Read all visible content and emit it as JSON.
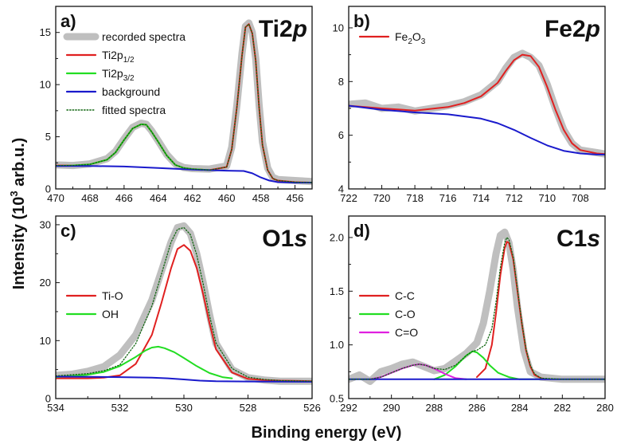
{
  "figure": {
    "xlabel": "Binding energy (eV)",
    "ylabel": "Intensity (10",
    "ylabel_sup": "3",
    "ylabel_unit": " arb.u.)"
  },
  "chart_data": [
    {
      "type": "line",
      "panel": "a)",
      "element": {
        "base": "Ti2",
        "italic": "p"
      },
      "xlim": [
        470,
        455
      ],
      "ylim": [
        0,
        17.5
      ],
      "xticks": [
        470,
        468,
        466,
        464,
        462,
        460,
        458,
        456
      ],
      "yticks": [
        0,
        5,
        10,
        15
      ],
      "legend_position": "top-left",
      "series": [
        {
          "name": "recorded spectra",
          "color": "#bfbfbf",
          "style": "thick",
          "x": [
            470,
            469,
            468,
            467,
            466.5,
            466,
            465.5,
            465,
            464.7,
            464.4,
            464,
            463.5,
            463,
            462.5,
            462,
            461,
            460,
            459.7,
            459.4,
            459.1,
            458.9,
            458.7,
            458.5,
            458.3,
            458.1,
            457.9,
            457.6,
            457.3,
            457,
            456,
            455
          ],
          "y": [
            2.3,
            2.25,
            2.4,
            2.9,
            3.6,
            4.8,
            5.9,
            6.3,
            6.2,
            5.6,
            4.6,
            3.3,
            2.4,
            2.05,
            1.95,
            1.9,
            2.2,
            4.0,
            8.0,
            13.0,
            15.6,
            15.9,
            15.0,
            12.5,
            8.0,
            4.5,
            2.0,
            1.1,
            0.9,
            0.8,
            0.7
          ]
        },
        {
          "name": "Ti2p",
          "name_sub": "1/2",
          "color": "#e02020",
          "style": "solid",
          "x": [
            470,
            469,
            468,
            467,
            466.5,
            466,
            465.5,
            465,
            464.7,
            464.4,
            464,
            463.5,
            463,
            462.5,
            462,
            461,
            460,
            459.7,
            459.4,
            459.1,
            458.9,
            458.7,
            458.5,
            458.3,
            458.1,
            457.9,
            457.6,
            457.3,
            457,
            456,
            455
          ],
          "y": [
            2.25,
            2.25,
            2.35,
            2.8,
            3.5,
            4.7,
            5.8,
            6.2,
            6.15,
            5.5,
            4.5,
            3.2,
            2.3,
            2.0,
            1.9,
            1.8,
            2.1,
            3.8,
            7.8,
            12.8,
            15.5,
            15.8,
            14.9,
            12.3,
            7.8,
            4.2,
            1.8,
            1.0,
            0.8,
            0.65,
            0.6
          ]
        },
        {
          "name": "Ti2p",
          "name_sub": "3/2",
          "color": "#22dd22",
          "style": "solid",
          "x": [
            470,
            469,
            468,
            467,
            466.5,
            466,
            465.5,
            465,
            464.7,
            464.4,
            464,
            463.5,
            463,
            462.5,
            462,
            461
          ],
          "y": [
            2.2,
            2.25,
            2.35,
            2.8,
            3.5,
            4.7,
            5.8,
            6.2,
            6.15,
            5.5,
            4.5,
            3.2,
            2.3,
            2.0,
            1.9,
            1.8
          ]
        },
        {
          "name": "background",
          "color": "#1a1acc",
          "style": "solid",
          "x": [
            470,
            468,
            466,
            464,
            462,
            460,
            459,
            458.5,
            458,
            457.5,
            457,
            456,
            455
          ],
          "y": [
            2.2,
            2.2,
            2.15,
            2.0,
            1.85,
            1.75,
            1.72,
            1.5,
            1.1,
            0.8,
            0.65,
            0.6,
            0.6
          ]
        },
        {
          "name": "fitted spectra",
          "color": "#116611",
          "style": "dotted",
          "x": [
            470,
            469,
            468,
            467,
            466.5,
            466,
            465.5,
            465,
            464.7,
            464.4,
            464,
            463.5,
            463,
            462.5,
            462,
            461,
            460,
            459.7,
            459.4,
            459.1,
            458.9,
            458.7,
            458.5,
            458.3,
            458.1,
            457.9,
            457.6,
            457.3,
            457,
            456,
            455
          ],
          "y": [
            2.25,
            2.25,
            2.35,
            2.8,
            3.5,
            4.7,
            5.8,
            6.2,
            6.15,
            5.5,
            4.5,
            3.2,
            2.3,
            2.0,
            1.9,
            1.8,
            2.1,
            3.8,
            7.8,
            12.8,
            15.5,
            15.8,
            14.9,
            12.3,
            7.8,
            4.2,
            1.8,
            1.0,
            0.8,
            0.65,
            0.6
          ]
        }
      ]
    },
    {
      "type": "line",
      "panel": "b)",
      "element": {
        "base": "Fe2",
        "italic": "p"
      },
      "xlim": [
        722,
        706.5
      ],
      "ylim": [
        4,
        10.8
      ],
      "xticks": [
        722,
        720,
        718,
        716,
        714,
        712,
        710,
        708
      ],
      "yticks": [
        4,
        6,
        8,
        10
      ],
      "legend_position": "top-left",
      "series": [
        {
          "name": "recorded spectra",
          "color": "#bfbfbf",
          "style": "thick",
          "legend": false,
          "x": [
            722,
            721,
            720,
            719,
            718,
            717,
            716,
            715,
            714,
            713,
            712.5,
            712,
            711.5,
            711,
            710.5,
            710,
            709.5,
            709,
            708.5,
            708,
            707,
            706.5
          ],
          "y": [
            7.15,
            7.2,
            7.0,
            7.05,
            6.9,
            7.0,
            7.1,
            7.25,
            7.5,
            8.0,
            8.5,
            8.9,
            9.05,
            8.9,
            8.6,
            7.9,
            7.0,
            6.2,
            5.7,
            5.45,
            5.35,
            5.3
          ]
        },
        {
          "name": "Fe",
          "name_parts": [
            {
              "t": "Fe"
            },
            {
              "t": "2",
              "sub": true
            },
            {
              "t": "O"
            },
            {
              "t": "3",
              "sub": true
            }
          ],
          "color": "#e02020",
          "style": "solid",
          "x": [
            722,
            720,
            718,
            716,
            715,
            714,
            713,
            712.5,
            712,
            711.5,
            711,
            710.5,
            710,
            709.5,
            709,
            708.5,
            708,
            707,
            706.5
          ],
          "y": [
            7.1,
            7.0,
            6.92,
            7.05,
            7.2,
            7.45,
            7.95,
            8.4,
            8.8,
            9.0,
            8.95,
            8.55,
            7.8,
            6.95,
            6.2,
            5.7,
            5.45,
            5.32,
            5.3
          ]
        },
        {
          "name": "background",
          "color": "#1a1acc",
          "style": "solid",
          "legend": false,
          "x": [
            722,
            720,
            718,
            716,
            714,
            713,
            712,
            711,
            710,
            709,
            708,
            707,
            706.5
          ],
          "y": [
            7.1,
            6.95,
            6.85,
            6.78,
            6.62,
            6.45,
            6.2,
            5.9,
            5.62,
            5.42,
            5.32,
            5.28,
            5.28
          ]
        }
      ]
    },
    {
      "type": "line",
      "panel": "c)",
      "element": {
        "base": "O1",
        "italic": "s"
      },
      "xlim": [
        534,
        526
      ],
      "ylim": [
        0,
        31.5
      ],
      "xticks": [
        534,
        532,
        530,
        528,
        526
      ],
      "yticks": [
        0,
        10,
        20,
        30
      ],
      "legend_position": "middle-left",
      "series": [
        {
          "name": "recorded spectra",
          "color": "#bfbfbf",
          "style": "thick",
          "legend": false,
          "x": [
            534,
            533.5,
            533,
            532.5,
            532,
            531.5,
            531,
            530.7,
            530.4,
            530.2,
            530,
            529.8,
            529.6,
            529.4,
            529.2,
            529,
            528.5,
            528,
            527.5,
            527,
            526
          ],
          "y": [
            4.0,
            4.2,
            4.7,
            5.5,
            7.5,
            11.0,
            17.0,
            22.0,
            27.0,
            29.5,
            29.8,
            28.5,
            25.0,
            20.0,
            14.5,
            9.5,
            5.0,
            3.6,
            3.2,
            3.0,
            3.0
          ]
        },
        {
          "name": "Ti-O",
          "color": "#e02020",
          "style": "solid",
          "x": [
            534,
            533,
            532.5,
            532,
            531.5,
            531,
            530.7,
            530.4,
            530.2,
            530,
            529.8,
            529.6,
            529.4,
            529.2,
            529,
            528.5,
            528,
            527.5,
            527,
            526
          ],
          "y": [
            3.5,
            3.5,
            3.6,
            4.0,
            6.0,
            11.0,
            16.5,
            22.5,
            25.8,
            26.5,
            25.5,
            22.5,
            18.0,
            13.0,
            8.5,
            4.5,
            3.4,
            3.2,
            3.1,
            3.0
          ]
        },
        {
          "name": "OH",
          "color": "#22dd22",
          "style": "solid",
          "x": [
            534,
            533,
            532.5,
            532,
            531.5,
            531.2,
            531,
            530.8,
            530.6,
            530.3,
            530,
            529.6,
            529.2,
            528.8,
            528.5
          ],
          "y": [
            3.7,
            4.1,
            4.6,
            5.6,
            7.2,
            8.3,
            8.8,
            8.95,
            8.7,
            8.0,
            7.0,
            5.6,
            4.4,
            3.7,
            3.5
          ]
        },
        {
          "name": "background",
          "color": "#1a1acc",
          "style": "solid",
          "legend": false,
          "x": [
            534,
            532,
            531,
            530.5,
            530,
            529.5,
            529,
            528,
            526
          ],
          "y": [
            3.8,
            3.7,
            3.6,
            3.5,
            3.3,
            3.1,
            3.0,
            2.95,
            2.9
          ]
        },
        {
          "name": "fitted spectra",
          "color": "#116611",
          "style": "dotted",
          "legend": false,
          "x": [
            534,
            533,
            532.5,
            532,
            531.5,
            531,
            530.7,
            530.4,
            530.2,
            530,
            529.8,
            529.6,
            529.4,
            529.2,
            529,
            528.5,
            528,
            527.5,
            527,
            526
          ],
          "y": [
            3.9,
            4.3,
            4.8,
            5.8,
            9.5,
            16.0,
            21.5,
            27.0,
            29.2,
            29.5,
            28.3,
            24.8,
            19.8,
            14.3,
            9.6,
            5.2,
            3.7,
            3.3,
            3.1,
            3.0
          ]
        }
      ]
    },
    {
      "type": "line",
      "panel": "d)",
      "element": {
        "base": "C1",
        "italic": "s"
      },
      "xlim": [
        292,
        280
      ],
      "ylim": [
        0.5,
        2.2
      ],
      "xticks": [
        292,
        290,
        288,
        286,
        284,
        282,
        280
      ],
      "yticks": [
        0.5,
        1.0,
        1.5,
        2.0
      ],
      "legend_position": "middle-left",
      "series": [
        {
          "name": "recorded spectra",
          "color": "#bfbfbf",
          "style": "thick",
          "legend": false,
          "x": [
            292,
            291.5,
            291,
            290.5,
            290,
            289.5,
            289,
            288.5,
            288,
            287.5,
            287,
            286.5,
            286,
            285.7,
            285.4,
            285.1,
            284.9,
            284.7,
            284.5,
            284.3,
            284.1,
            283.8,
            283.5,
            283,
            282,
            281,
            280
          ],
          "y": [
            0.68,
            0.72,
            0.66,
            0.75,
            0.78,
            0.82,
            0.84,
            0.8,
            0.76,
            0.78,
            0.85,
            0.92,
            1.02,
            1.2,
            1.5,
            1.85,
            2.02,
            2.05,
            1.95,
            1.7,
            1.35,
            0.95,
            0.75,
            0.7,
            0.68,
            0.68,
            0.68
          ]
        },
        {
          "name": "C-C",
          "color": "#e02020",
          "style": "solid",
          "x": [
            286,
            285.6,
            285.3,
            285.1,
            284.9,
            284.7,
            284.6,
            284.5,
            284.3,
            284.1,
            283.9,
            283.7,
            283.5,
            283.3,
            283,
            282.8
          ],
          "y": [
            0.7,
            0.78,
            1.0,
            1.3,
            1.65,
            1.9,
            1.96,
            1.95,
            1.8,
            1.5,
            1.2,
            0.95,
            0.8,
            0.72,
            0.69,
            0.68
          ]
        },
        {
          "name": "C-O",
          "color": "#22dd22",
          "style": "solid",
          "x": [
            288,
            287.5,
            287,
            286.5,
            286.2,
            286,
            285.7,
            285.4,
            285,
            284.5,
            284,
            283.5,
            283
          ],
          "y": [
            0.68,
            0.72,
            0.8,
            0.9,
            0.94,
            0.93,
            0.88,
            0.81,
            0.74,
            0.7,
            0.68,
            0.68,
            0.68
          ]
        },
        {
          "name": "C=O",
          "color": "#e020e0",
          "style": "solid",
          "x": [
            291,
            290.5,
            290,
            289.5,
            289,
            288.7,
            288.4,
            288,
            287.5,
            287,
            286.5
          ],
          "y": [
            0.68,
            0.7,
            0.74,
            0.78,
            0.81,
            0.82,
            0.81,
            0.78,
            0.73,
            0.69,
            0.68
          ]
        },
        {
          "name": "background",
          "color": "#1a1acc",
          "style": "solid",
          "legend": false,
          "x": [
            292,
            290,
            288,
            286,
            284,
            282,
            280
          ],
          "y": [
            0.68,
            0.68,
            0.68,
            0.68,
            0.68,
            0.68,
            0.68
          ]
        },
        {
          "name": "fitted spectra",
          "color": "#116611",
          "style": "dotted",
          "legend": false,
          "x": [
            292,
            291,
            290.5,
            290,
            289.5,
            289,
            288.7,
            288.4,
            288,
            287.5,
            287,
            286.5,
            286.2,
            286,
            285.6,
            285.3,
            285.1,
            284.9,
            284.7,
            284.6,
            284.5,
            284.3,
            284.1,
            283.9,
            283.7,
            283.5,
            283.3,
            283,
            282,
            280
          ],
          "y": [
            0.68,
            0.68,
            0.7,
            0.74,
            0.78,
            0.81,
            0.82,
            0.81,
            0.78,
            0.77,
            0.81,
            0.9,
            0.94,
            0.95,
            1.0,
            1.15,
            1.4,
            1.72,
            1.95,
            2.0,
            1.98,
            1.82,
            1.52,
            1.21,
            0.96,
            0.81,
            0.73,
            0.69,
            0.68,
            0.68
          ]
        }
      ]
    }
  ]
}
